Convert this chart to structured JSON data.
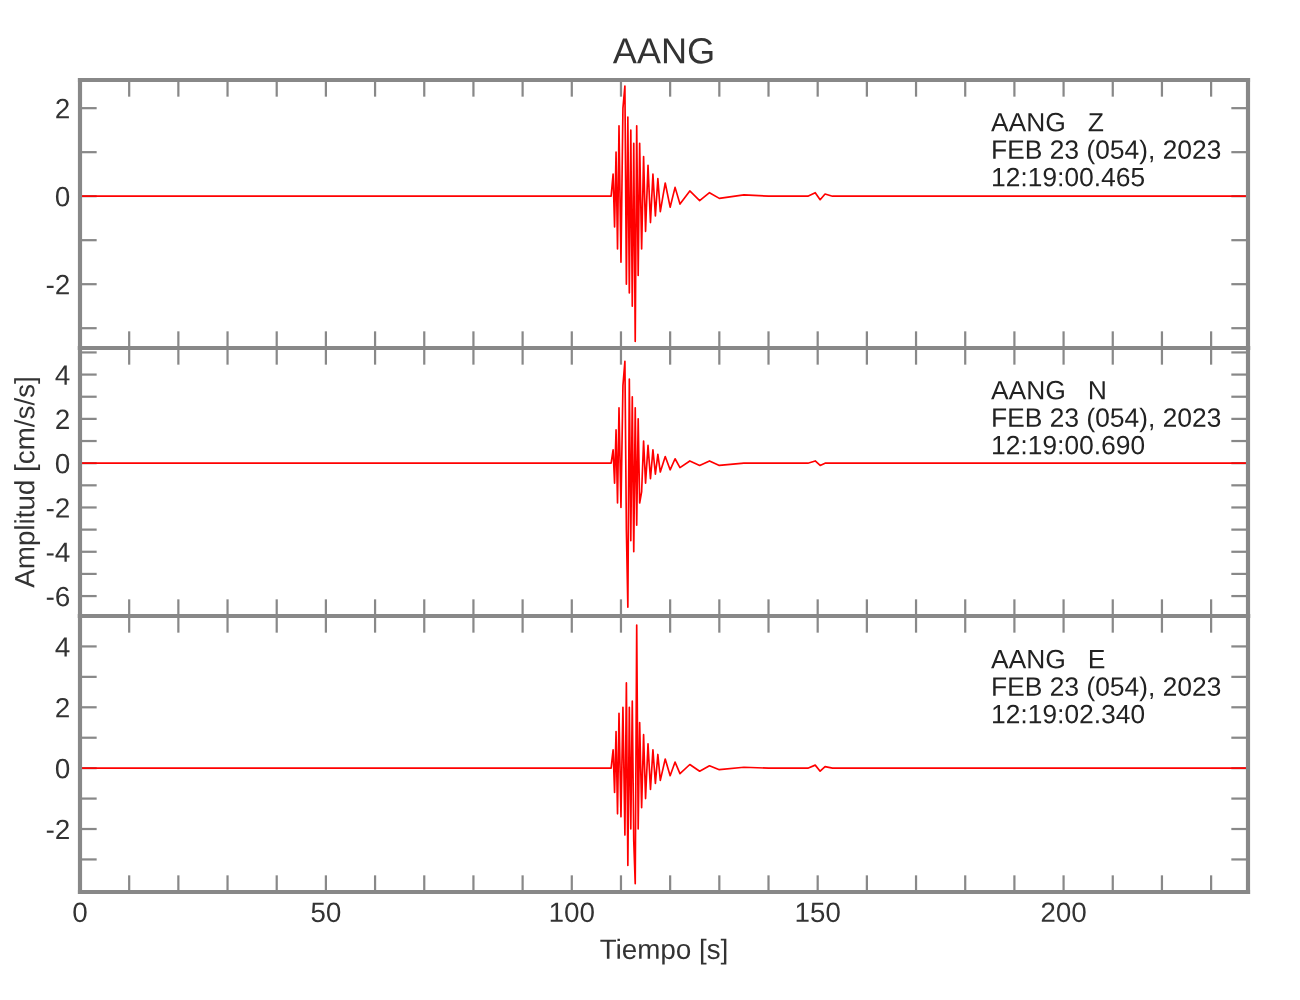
{
  "chart_data": [
    {
      "type": "line",
      "title": "AANG",
      "annotations": [
        "AANG   Z\nFEB 23 (054), 2023\n12:19:00.465"
      ],
      "xlim": [
        0,
        237.5
      ],
      "ylim": [
        -3.45,
        2.64
      ],
      "tick_labels": "y",
      "grid": false,
      "legend": false,
      "xticks": [
        0,
        {
          "value": 10,
          "label": null
        },
        {
          "value": 20,
          "label": null
        },
        {
          "value": 30,
          "label": null
        },
        {
          "value": 40,
          "label": null
        },
        50,
        {
          "value": 60,
          "label": null
        },
        {
          "value": 70,
          "label": null
        },
        {
          "value": 80,
          "label": null
        },
        {
          "value": 90,
          "label": null
        },
        100,
        {
          "value": 110,
          "label": null
        },
        {
          "value": 120,
          "label": null
        },
        {
          "value": 130,
          "label": null
        },
        {
          "value": 140,
          "label": null
        },
        150,
        {
          "value": 160,
          "label": null
        },
        {
          "value": 170,
          "label": null
        },
        {
          "value": 180,
          "label": null
        },
        {
          "value": 190,
          "label": null
        },
        200,
        {
          "value": 210,
          "label": null
        },
        {
          "value": 220,
          "label": null
        },
        {
          "value": 230,
          "label": null
        }
      ],
      "yticks": [
        {
          "value": -3,
          "label": null
        },
        -2,
        {
          "value": -1,
          "label": null
        },
        0,
        {
          "value": 1,
          "label": null
        },
        2
      ],
      "series": [
        {
          "color": "#ff0000",
          "x": [
            0,
            20,
            40,
            60,
            80,
            100,
            108,
            108.4,
            108.7,
            109,
            109.3,
            109.6,
            110,
            110.4,
            110.8,
            111.1,
            111.4,
            111.7,
            112,
            112.3,
            112.6,
            112.9,
            113.2,
            113.5,
            113.8,
            114.2,
            114.6,
            115,
            115.5,
            116,
            116.5,
            117,
            117.5,
            118,
            119,
            120,
            121,
            122,
            124,
            126,
            128,
            130,
            135,
            140,
            148,
            149.5,
            150.5,
            151.5,
            153,
            160,
            180,
            200,
            220,
            237.5
          ],
          "values": [
            0,
            0,
            0,
            0,
            0,
            0,
            0,
            0.5,
            -0.7,
            1.0,
            -1.2,
            1.6,
            -1.5,
            2.0,
            2.5,
            -2.0,
            1.8,
            -2.2,
            1.5,
            -2.5,
            1.2,
            -3.3,
            1.6,
            -1.8,
            1.2,
            -1.2,
            0.9,
            -0.8,
            0.7,
            -0.6,
            0.5,
            -0.45,
            0.4,
            -0.35,
            0.3,
            -0.25,
            0.2,
            -0.18,
            0.12,
            -0.1,
            0.08,
            -0.05,
            0.03,
            0,
            0,
            0.08,
            -0.08,
            0.05,
            0,
            0,
            0,
            0,
            0,
            0
          ]
        }
      ]
    },
    {
      "type": "line",
      "ylabel": "Amplitud [cm/s/s]",
      "annotations": [
        "AANG   N\nFEB 23 (054), 2023\n12:19:00.690"
      ],
      "xlim": [
        0,
        237.5
      ],
      "ylim": [
        -6.9,
        5.2
      ],
      "tick_labels": "y",
      "grid": false,
      "legend": false,
      "xticks": [
        0,
        {
          "value": 10,
          "label": null
        },
        {
          "value": 20,
          "label": null
        },
        {
          "value": 30,
          "label": null
        },
        {
          "value": 40,
          "label": null
        },
        50,
        {
          "value": 60,
          "label": null
        },
        {
          "value": 70,
          "label": null
        },
        {
          "value": 80,
          "label": null
        },
        {
          "value": 90,
          "label": null
        },
        100,
        {
          "value": 110,
          "label": null
        },
        {
          "value": 120,
          "label": null
        },
        {
          "value": 130,
          "label": null
        },
        {
          "value": 140,
          "label": null
        },
        150,
        {
          "value": 160,
          "label": null
        },
        {
          "value": 170,
          "label": null
        },
        {
          "value": 180,
          "label": null
        },
        {
          "value": 190,
          "label": null
        },
        200,
        {
          "value": 210,
          "label": null
        },
        {
          "value": 220,
          "label": null
        },
        {
          "value": 230,
          "label": null
        }
      ],
      "yticks": [
        -6,
        {
          "value": -5,
          "label": null
        },
        -4,
        {
          "value": -3,
          "label": null
        },
        -2,
        {
          "value": -1,
          "label": null
        },
        0,
        {
          "value": 1,
          "label": null
        },
        2,
        {
          "value": 3,
          "label": null
        },
        4,
        {
          "value": 5,
          "label": null
        }
      ],
      "series": [
        {
          "color": "#ff0000",
          "x": [
            0,
            20,
            40,
            60,
            80,
            100,
            108,
            108.4,
            108.7,
            109,
            109.3,
            109.6,
            110,
            110.4,
            110.8,
            111.1,
            111.4,
            111.7,
            112,
            112.3,
            112.6,
            112.9,
            113.2,
            113.5,
            113.8,
            114.2,
            114.6,
            115,
            115.5,
            116,
            116.5,
            117,
            117.5,
            118,
            119,
            120,
            121,
            122,
            124,
            126,
            128,
            130,
            135,
            140,
            148,
            149.5,
            150.5,
            151.5,
            153,
            160,
            180,
            200,
            220,
            237.5
          ],
          "values": [
            0,
            0,
            0,
            0,
            0,
            0,
            0,
            0.6,
            -0.9,
            1.5,
            -1.8,
            2.5,
            -2.0,
            3.5,
            4.6,
            -3.0,
            -6.5,
            3.8,
            -3.5,
            3.0,
            -4.0,
            2.5,
            -2.8,
            2.0,
            -1.8,
            -1.3,
            1.0,
            -0.9,
            0.8,
            -0.7,
            0.6,
            -0.5,
            0.4,
            -0.4,
            0.3,
            -0.3,
            0.2,
            -0.2,
            0.1,
            -0.1,
            0.1,
            -0.1,
            0,
            0,
            0,
            0.1,
            -0.1,
            0,
            0,
            0,
            0,
            0,
            0,
            0
          ]
        }
      ]
    },
    {
      "type": "line",
      "xlabel": "Tiempo [s]",
      "annotations": [
        "AANG   E\nFEB 23 (054), 2023\n12:19:02.340"
      ],
      "xlim": [
        0,
        237.5
      ],
      "ylim": [
        -4.07,
        5.0
      ],
      "grid": false,
      "legend": false,
      "xticks": [
        0,
        {
          "value": 10,
          "label": null
        },
        {
          "value": 20,
          "label": null
        },
        {
          "value": 30,
          "label": null
        },
        {
          "value": 40,
          "label": null
        },
        50,
        {
          "value": 60,
          "label": null
        },
        {
          "value": 70,
          "label": null
        },
        {
          "value": 80,
          "label": null
        },
        {
          "value": 90,
          "label": null
        },
        100,
        {
          "value": 110,
          "label": null
        },
        {
          "value": 120,
          "label": null
        },
        {
          "value": 130,
          "label": null
        },
        {
          "value": 140,
          "label": null
        },
        150,
        {
          "value": 160,
          "label": null
        },
        {
          "value": 170,
          "label": null
        },
        {
          "value": 180,
          "label": null
        },
        {
          "value": 190,
          "label": null
        },
        200,
        {
          "value": 210,
          "label": null
        },
        {
          "value": 220,
          "label": null
        },
        {
          "value": 230,
          "label": null
        }
      ],
      "yticks": [
        {
          "value": -3,
          "label": null
        },
        -2,
        {
          "value": -1,
          "label": null
        },
        0,
        {
          "value": 1,
          "label": null
        },
        2,
        {
          "value": 3,
          "label": null
        },
        4
      ],
      "series": [
        {
          "color": "#ff0000",
          "x": [
            0,
            20,
            40,
            60,
            80,
            100,
            108,
            108.4,
            108.7,
            109,
            109.3,
            109.6,
            110,
            110.4,
            110.8,
            111.1,
            111.4,
            111.7,
            112,
            112.3,
            112.6,
            112.9,
            113.2,
            113.5,
            113.8,
            114.2,
            114.6,
            115,
            115.5,
            116,
            116.5,
            117,
            117.5,
            118,
            119,
            120,
            121,
            122,
            124,
            126,
            128,
            130,
            135,
            140,
            148,
            149.5,
            150.5,
            151.5,
            153,
            160,
            180,
            200,
            220,
            237.5
          ],
          "values": [
            0,
            0,
            0,
            0,
            0,
            0,
            0,
            0.6,
            -0.8,
            1.2,
            -1.5,
            1.8,
            -1.6,
            2.0,
            -2.2,
            2.8,
            -3.2,
            2.0,
            -2.0,
            2.2,
            -2.4,
            -3.8,
            4.7,
            -2.0,
            1.5,
            -1.3,
            1.1,
            -1.0,
            0.8,
            -0.7,
            0.6,
            -0.5,
            0.45,
            -0.4,
            0.3,
            -0.25,
            0.2,
            -0.18,
            0.12,
            -0.1,
            0.08,
            -0.05,
            0.03,
            0,
            0,
            0.1,
            -0.1,
            0.05,
            0,
            0,
            0,
            0,
            0,
            0
          ]
        }
      ]
    }
  ]
}
